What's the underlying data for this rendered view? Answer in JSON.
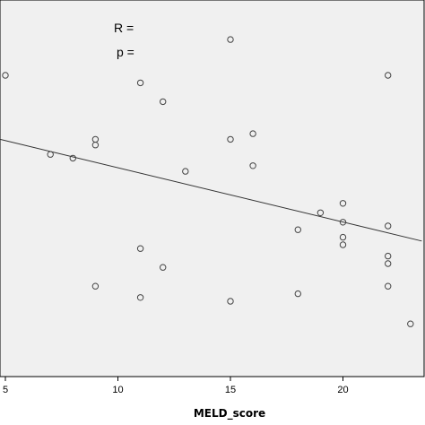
{
  "chart_data": {
    "type": "scatter",
    "xlabel": "MELD_score",
    "ylabel": "",
    "xlim": [
      5,
      23.5
    ],
    "ylim": [
      0,
      10
    ],
    "xticks": [
      5,
      10,
      15,
      20
    ],
    "grid": false,
    "colors": {
      "point": "#444444",
      "line": "#333333",
      "background": "#f0f0f0"
    },
    "annotations": {
      "r_label": "R =",
      "p_label": "p ="
    },
    "points": [
      {
        "x": 5,
        "y": 8.0
      },
      {
        "x": 7,
        "y": 5.9
      },
      {
        "x": 8,
        "y": 5.8
      },
      {
        "x": 9,
        "y": 6.3
      },
      {
        "x": 9,
        "y": 6.15
      },
      {
        "x": 9,
        "y": 2.4
      },
      {
        "x": 11,
        "y": 7.8
      },
      {
        "x": 11,
        "y": 3.4
      },
      {
        "x": 11,
        "y": 2.1
      },
      {
        "x": 12,
        "y": 7.3
      },
      {
        "x": 12,
        "y": 2.9
      },
      {
        "x": 13,
        "y": 5.45
      },
      {
        "x": 15,
        "y": 8.95
      },
      {
        "x": 15,
        "y": 6.3
      },
      {
        "x": 15,
        "y": 2.0
      },
      {
        "x": 16,
        "y": 6.45
      },
      {
        "x": 16,
        "y": 5.6
      },
      {
        "x": 18,
        "y": 3.9
      },
      {
        "x": 18,
        "y": 2.2
      },
      {
        "x": 19,
        "y": 4.35
      },
      {
        "x": 20,
        "y": 4.6
      },
      {
        "x": 20,
        "y": 4.1
      },
      {
        "x": 20,
        "y": 3.7
      },
      {
        "x": 20,
        "y": 3.5
      },
      {
        "x": 22,
        "y": 8.0
      },
      {
        "x": 22,
        "y": 4.0
      },
      {
        "x": 22,
        "y": 3.2
      },
      {
        "x": 22,
        "y": 3.0
      },
      {
        "x": 22,
        "y": 2.4
      },
      {
        "x": 23,
        "y": 1.4
      }
    ],
    "fit_line": {
      "x": [
        5,
        23.5
      ],
      "y": [
        6.3,
        3.6
      ]
    }
  }
}
